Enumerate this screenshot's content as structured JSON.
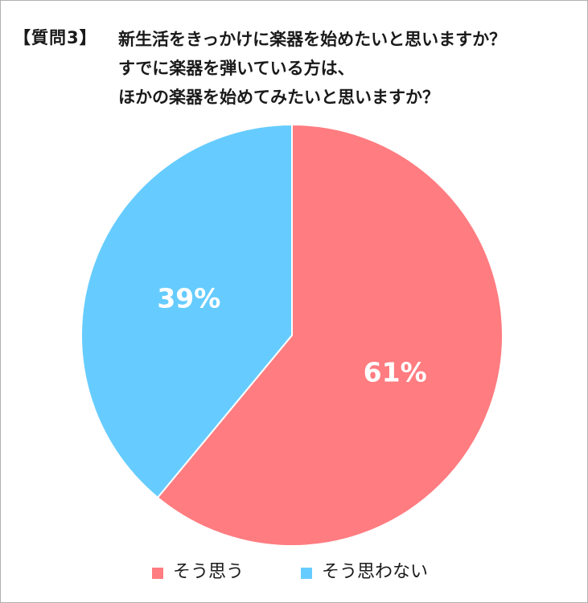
{
  "header": {
    "question_label": "【質問3】",
    "question_lines": [
      "新生活をきっかけに楽器を始めたいと思いますか？",
      "すでに楽器を弾いている方は、",
      "ほかの楽器を始めてみたいと思いますか？"
    ]
  },
  "chart_data": {
    "type": "pie",
    "start_angle_deg": 0,
    "direction": "clockwise",
    "slices": [
      {
        "label": "そう思う",
        "value": 61,
        "display": "61%",
        "color": "#ff7c80"
      },
      {
        "label": "そう思わない",
        "value": 39,
        "display": "39%",
        "color": "#66ccff"
      }
    ],
    "legend_position": "bottom"
  }
}
